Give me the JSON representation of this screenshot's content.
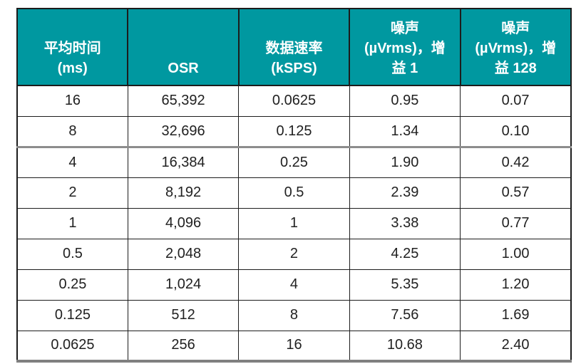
{
  "colors": {
    "accent": "#0098A0",
    "header_text": "#FFFFFF",
    "body_text": "#212121",
    "grid_line": "#1C1C1C",
    "bottom_bar": "#7F7F7F"
  },
  "table": {
    "columns": [
      {
        "label_lines": [
          "平均时间",
          "(ms)"
        ]
      },
      {
        "label_lines": [
          "OSR"
        ]
      },
      {
        "label_lines": [
          "数据速率",
          "(kSPS)"
        ]
      },
      {
        "label_lines": [
          "噪声",
          "(µVrms)，增",
          "益 1"
        ]
      },
      {
        "label_lines": [
          "噪声",
          "(µVrms)，增",
          "益 128"
        ]
      }
    ],
    "rows": [
      [
        "16",
        "65,392",
        "0.0625",
        "0.95",
        "0.07"
      ],
      [
        "8",
        "32,696",
        "0.125",
        "1.34",
        "0.10"
      ],
      [
        "4",
        "16,384",
        "0.25",
        "1.90",
        "0.42"
      ],
      [
        "2",
        "8,192",
        "0.5",
        "2.39",
        "0.57"
      ],
      [
        "1",
        "4,096",
        "1",
        "3.38",
        "0.77"
      ],
      [
        "0.5",
        "2,048",
        "2",
        "4.25",
        "1.00"
      ],
      [
        "0.25",
        "1,024",
        "4",
        "5.35",
        "1.20"
      ],
      [
        "0.125",
        "512",
        "8",
        "7.56",
        "1.69"
      ],
      [
        "0.0625",
        "256",
        "16",
        "10.68",
        "2.40"
      ]
    ]
  }
}
